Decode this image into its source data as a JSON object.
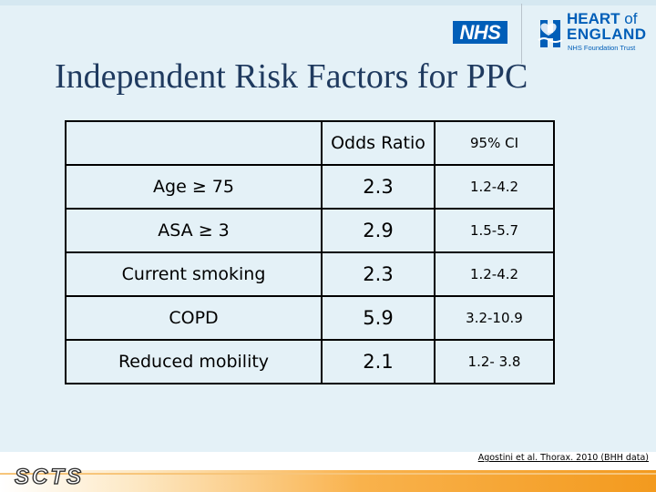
{
  "header": {
    "nhs_logo": "NHS",
    "trust_logo": {
      "line1": "HEART",
      "line1_suffix": " of",
      "line2": "ENGLAND",
      "line3": "NHS Foundation Trust"
    }
  },
  "title": "Independent Risk Factors for PPC",
  "table": {
    "headers": [
      "",
      "Odds Ratio",
      "95% CI"
    ],
    "rows": [
      {
        "factor": "Age ≥ 75",
        "odds_ratio": "2.3",
        "ci": "1.2-4.2"
      },
      {
        "factor": "ASA ≥ 3",
        "odds_ratio": "2.9",
        "ci": "1.5-5.7"
      },
      {
        "factor": "Current smoking",
        "odds_ratio": "2.3",
        "ci": "1.2-4.2"
      },
      {
        "factor": "COPD",
        "odds_ratio": "5.9",
        "ci": "3.2-10.9"
      },
      {
        "factor": "Reduced mobility",
        "odds_ratio": "2.1",
        "ci": "1.2- 3.8"
      }
    ]
  },
  "citation": "Agostini et al. Thorax. 2010 (BHH data)",
  "footer": {
    "logo": "SCTS"
  },
  "colors": {
    "background": "#e4f1f7",
    "title": "#1f3a5f",
    "nhs_blue": "#005eb8",
    "footer_orange": "#f39a1e"
  }
}
